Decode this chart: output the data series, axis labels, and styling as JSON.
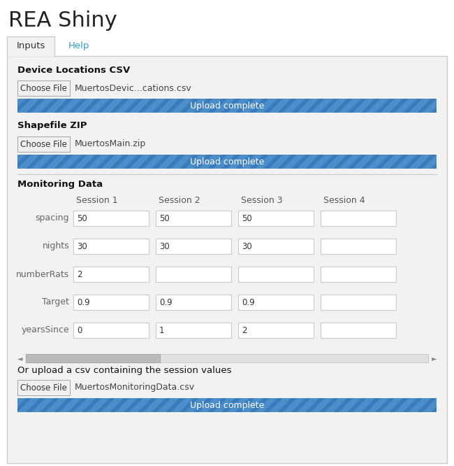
{
  "title": "REA Shiny",
  "title_color": "#222222",
  "title_fontsize": 22,
  "bg_color": "#ffffff",
  "panel_bg": "#f2f2f2",
  "tab_active": "Inputs",
  "tab_inactive": "Help",
  "tab_active_color": "#333333",
  "tab_inactive_color": "#3399cc",
  "section1_label": "Device Locations CSV",
  "section1_file": "MuertosDevic...cations.csv",
  "section2_label": "Shapefile ZIP",
  "section2_file": "MuertosMain.zip",
  "section3_label": "Monitoring Data",
  "upload_bar_dark": "#3a7abf",
  "upload_bar_light": "#5a9fd4",
  "upload_text": "Upload complete",
  "upload_text_color": "#ffffff",
  "button_bg": "#f0f0f0",
  "button_border": "#aaaaaa",
  "button_text": "Choose File",
  "button_text_color": "#333333",
  "sessions": [
    "Session 1",
    "Session 2",
    "Session 3",
    "Session 4"
  ],
  "rows": [
    "spacing",
    "nights",
    "numberRats",
    "Target",
    "yearsSince"
  ],
  "grid_values": [
    [
      "50",
      "50",
      "50",
      ""
    ],
    [
      "30",
      "30",
      "30",
      ""
    ],
    [
      "2",
      "",
      "",
      ""
    ],
    [
      "0.9",
      "0.9",
      "0.9",
      ""
    ],
    [
      "0",
      "1",
      "2",
      ""
    ]
  ],
  "csv_label": "Or upload a csv containing the session values",
  "csv_file": "MuertosMonitoringData.csv",
  "input_bg": "#ffffff",
  "input_border": "#cccccc",
  "label_color": "#666666",
  "section_label_color": "#111111",
  "panel_border": "#cccccc",
  "tab_border": "#cccccc",
  "scrollbar_thumb": "#bbbbbb",
  "scrollbar_track": "#e0e0e0"
}
